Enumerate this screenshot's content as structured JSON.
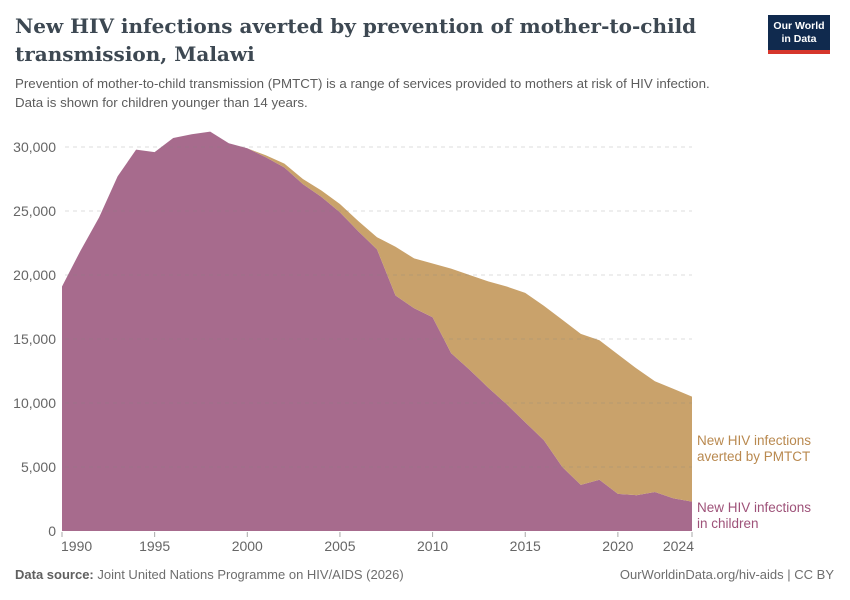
{
  "header": {
    "title_line1": "New HIV infections averted by prevention of mother-to-child",
    "title_line2": "transmission, Malawi",
    "subtitle_line1": "Prevention of mother-to-child transmission (PMTCT) is a range of services provided to mothers at risk of HIV infection.",
    "subtitle_line2": "Data is shown for children younger than 14 years."
  },
  "logo": {
    "line1": "Our World",
    "line2": "in Data",
    "bg_color": "#102a4e",
    "accent_color": "#d6362c"
  },
  "chart_data": {
    "type": "area",
    "stacked": true,
    "grid": "dashed-horizontal",
    "legend_position": "right-annotations",
    "x": [
      1990,
      1991,
      1992,
      1993,
      1994,
      1995,
      1996,
      1997,
      1998,
      1999,
      2000,
      2001,
      2002,
      2003,
      2004,
      2005,
      2006,
      2007,
      2008,
      2009,
      2010,
      2011,
      2012,
      2013,
      2014,
      2015,
      2016,
      2017,
      2018,
      2019,
      2020,
      2021,
      2022,
      2023,
      2024
    ],
    "series": [
      {
        "name": "New HIV infections in children",
        "label_line1": "New HIV infections",
        "label_line2": "in children",
        "color": "#a76b8d",
        "label_color": "#9e5279",
        "values": [
          19100,
          21900,
          24500,
          27700,
          29800,
          29600,
          30700,
          31000,
          31200,
          30300,
          29900,
          29200,
          28400,
          27100,
          26100,
          24900,
          23400,
          22000,
          18400,
          17400,
          16700,
          13900,
          12600,
          11200,
          9900,
          8500,
          7100,
          5000,
          3600,
          4000,
          2900,
          2800,
          3050,
          2550,
          2300
        ]
      },
      {
        "name": "New HIV infections averted by PMTCT",
        "label_line1": "New HIV infections",
        "label_line2": "averted by PMTCT",
        "color": "#c9a26b",
        "label_color": "#b9894f",
        "values": [
          0,
          0,
          0,
          0,
          0,
          0,
          0,
          0,
          0,
          0,
          0,
          150,
          300,
          400,
          500,
          650,
          800,
          950,
          3800,
          3900,
          4200,
          6600,
          7400,
          8300,
          9200,
          10100,
          10500,
          11500,
          11800,
          10900,
          10900,
          9900,
          8650,
          8550,
          8200
        ]
      }
    ],
    "xticks": [
      1990,
      1995,
      2000,
      2005,
      2010,
      2015,
      2020,
      2024
    ],
    "yticks": [
      0,
      5000,
      10000,
      15000,
      20000,
      25000,
      30000
    ],
    "xlim": [
      1990,
      2024
    ],
    "ylim": [
      0,
      30000
    ]
  },
  "footer": {
    "source_label": "Data source:",
    "source_text": " Joint United Nations Programme on HIV/AIDS (2026)",
    "credit": "OurWorldinData.org/hiv-aids | CC BY"
  }
}
